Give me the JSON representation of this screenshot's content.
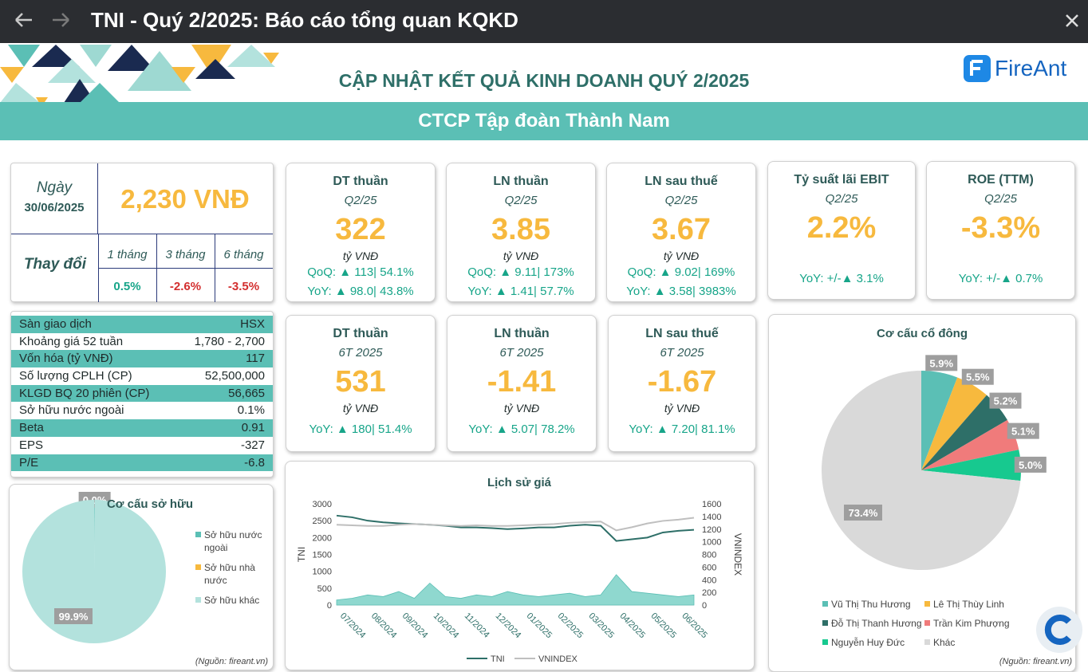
{
  "window": {
    "title": "TNI - Quý 2/2025: Báo cáo tổng quan KQKD"
  },
  "header": {
    "title": "CẬP NHẬT KẾT QUẢ KINH DOANH QUÝ 2/2025",
    "logo": "FireAnt",
    "company": "CTCP Tập đoàn Thành Nam"
  },
  "price_box": {
    "date_label": "Ngày",
    "date": "30/06/2025",
    "price": "2,230 VNĐ",
    "change_label": "Thay đổi",
    "periods": [
      "1 tháng",
      "3 tháng",
      "6 tháng"
    ],
    "changes": [
      "0.5%",
      "-2.6%",
      "-3.5%"
    ]
  },
  "kpis": [
    {
      "title": "DT thuần",
      "period": "Q2/25",
      "value": "322",
      "unit": "tỷ VNĐ",
      "lines": [
        "QoQ: ▲ 113| 54.1%",
        "YoY: ▲ 98.0| 43.8%"
      ]
    },
    {
      "title": "LN thuần",
      "period": "Q2/25",
      "value": "3.85",
      "unit": "tỷ VNĐ",
      "lines": [
        "QoQ: ▲ 9.11| 173%",
        "YoY: ▲ 1.41| 57.7%"
      ]
    },
    {
      "title": "LN sau thuế",
      "period": "Q2/25",
      "value": "3.67",
      "unit": "tỷ VNĐ",
      "lines": [
        "QoQ: ▲ 9.02| 169%",
        "YoY: ▲ 3.58| 3983%"
      ]
    },
    {
      "title": "Tỷ suất lãi EBIT",
      "period": "Q2/25",
      "value": "2.2%",
      "lines": [
        "YoY: +/-▲ 3.1%"
      ]
    },
    {
      "title": "ROE (TTM)",
      "period": "Q2/25",
      "value": "-3.3%",
      "lines": [
        "YoY: +/-▲ 0.7%"
      ]
    },
    {
      "title": "DT thuần",
      "period": "6T 2025",
      "value": "531",
      "unit": "tỷ VNĐ",
      "lines": [
        "YoY: ▲ 180| 51.4%"
      ]
    },
    {
      "title": "LN thuần",
      "period": "6T 2025",
      "value": "-1.41",
      "unit": "tỷ VNĐ",
      "lines": [
        "YoY: ▲ 5.07| 78.2%"
      ]
    },
    {
      "title": "LN sau thuế",
      "period": "6T 2025",
      "value": "-1.67",
      "unit": "tỷ VNĐ",
      "lines": [
        "YoY: ▲ 7.20| 81.1%"
      ]
    }
  ],
  "stats": [
    [
      "Sàn giao dịch",
      "HSX"
    ],
    [
      "Khoảng giá 52 tuần",
      "1,780 - 2,700"
    ],
    [
      "Vốn hóa (tỷ VNĐ)",
      "117"
    ],
    [
      "Số lượng CPLH (CP)",
      "52,500,000"
    ],
    [
      "KLGD BQ 20 phiên (CP)",
      "56,665"
    ],
    [
      "Sở hữu nước ngoài",
      "0.1%"
    ],
    [
      "Beta",
      "0.91"
    ],
    [
      "EPS",
      "-327"
    ],
    [
      "P/E",
      "-6.8"
    ]
  ],
  "ownership_chart": {
    "type": "pie",
    "title": "Cơ cấu sở hữu",
    "source": "(Nguồn: fireant.vn)",
    "categories": [
      "Sở hữu nước ngoài",
      "Sở hữu nhà nước",
      "Sở hữu khác"
    ],
    "colors": [
      "#5bbfb5",
      "#f7b93e",
      "#b3e2dd"
    ],
    "values": [
      0.1,
      0.0,
      99.9
    ],
    "value_labels": [
      null,
      "0.0%",
      "99.9%"
    ]
  },
  "price_chart": {
    "type": "line",
    "title": "Lịch sử giá",
    "y_label": "TNI",
    "y2_label": "VNINDEX",
    "categories": [
      "07/2024",
      null,
      "08/2024",
      null,
      "09/2024",
      null,
      "10/2024",
      null,
      "11/2024",
      null,
      "12/2024",
      null,
      "01/2025",
      null,
      "02/2025",
      null,
      "03/2025",
      null,
      "04/2025",
      null,
      "05/2025",
      null,
      "06/2025",
      null
    ],
    "series": [
      {
        "name": "TNI",
        "color": "#2e6f68",
        "values": [
          2650,
          2600,
          2500,
          2450,
          2420,
          2400,
          2380,
          2350,
          2300,
          2300,
          2280,
          2250,
          2270,
          2300,
          2300,
          2350,
          2380,
          2350,
          1900,
          1950,
          2000,
          2150,
          2200,
          2230
        ]
      },
      {
        "name": "VNINDEX",
        "color": "#bfbfbf",
        "axis": "y2",
        "values": [
          1270,
          1260,
          1250,
          1250,
          1270,
          1280,
          1270,
          1260,
          1250,
          1260,
          1250,
          1250,
          1260,
          1270,
          1280,
          1300,
          1310,
          1320,
          1180,
          1230,
          1290,
          1330,
          1350,
          1380
        ]
      },
      {
        "type": "area",
        "color": "#8fd8cf",
        "values": [
          150,
          200,
          300,
          250,
          400,
          200,
          650,
          250,
          200,
          300,
          250,
          400,
          300,
          250,
          300,
          350,
          250,
          300,
          900,
          400,
          350,
          300,
          250,
          300
        ]
      }
    ],
    "ylim": [
      0,
      3000
    ],
    "yticks": [
      0,
      500,
      1000,
      1500,
      2000,
      2500,
      3000
    ],
    "y2lim": [
      0,
      1600
    ],
    "y2ticks": [
      0,
      200,
      400,
      600,
      800,
      1000,
      1200,
      1400,
      1600
    ]
  },
  "shareholder_chart": {
    "type": "pie",
    "title": "Cơ cấu cổ đông",
    "source": "(Nguồn: fireant.vn)",
    "categories": [
      "Vũ Thị Thu Hương",
      "Lê Thị Thùy Linh",
      "Đỗ Thị Thanh Hương",
      "Trần Kim Phượng",
      "Nguyễn Huy Đức",
      "Khác"
    ],
    "colors": [
      "#5bbfb5",
      "#f7b93e",
      "#2e6f68",
      "#f07b7b",
      "#17c98f",
      "#d9d9d9"
    ],
    "values": [
      5.9,
      5.5,
      5.2,
      5.1,
      5.0,
      73.4
    ],
    "value_labels": [
      "5.9%",
      "5.5%",
      "5.2%",
      "5.1%",
      "5.0%",
      "73.4%"
    ]
  }
}
